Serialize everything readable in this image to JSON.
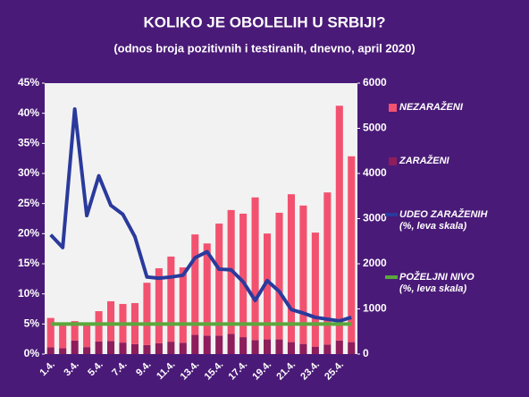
{
  "chart_data": {
    "type": "bar",
    "title": "KOLIKO JE OBOLELIH U SRBIJI?",
    "subtitle": "(odnos broja pozitivnih i testiranih, dnevno, april 2020)",
    "categories": [
      "1.4.",
      null,
      "3.4.",
      null,
      "5.4.",
      null,
      "7.4.",
      null,
      "9.4.",
      null,
      "11.4.",
      null,
      "13.4.",
      null,
      "15.4.",
      null,
      "17.4.",
      null,
      "19.4.",
      null,
      "21.4.",
      null,
      "23.4.",
      null,
      "25.4.",
      null
    ],
    "series": [
      {
        "name": "NEZARAŽENI",
        "type": "bar",
        "axis": "y2",
        "color": "#f2526f",
        "values": [
          650,
          520,
          430,
          515,
          670,
          880,
          855,
          910,
          1380,
          1660,
          1885,
          1670,
          2225,
          2040,
          2480,
          2745,
          2735,
          3160,
          2345,
          2805,
          3275,
          3065,
          2525,
          3370,
          5200,
          4115
        ]
      },
      {
        "name": "ZARAŽENI",
        "type": "bar",
        "axis": "y2",
        "color": "#8e1d5c",
        "values": [
          150,
          130,
          300,
          155,
          280,
          290,
          255,
          220,
          200,
          240,
          275,
          250,
          425,
          410,
          410,
          445,
          375,
          310,
          325,
          325,
          265,
          225,
          165,
          210,
          300,
          265
        ]
      },
      {
        "name": "UDEO ZARAŽENIH",
        "legend_note": "(%, leva skala)",
        "type": "line",
        "color": "#2a3a9c",
        "values": [
          19.8,
          17.7,
          40.7,
          23,
          29.6,
          24.7,
          23.2,
          19.5,
          12.8,
          12.6,
          12.8,
          13.1,
          16,
          17,
          14.1,
          14,
          12,
          8.9,
          12.2,
          10.4,
          7.4,
          6.8,
          6.1,
          5.8,
          5.5,
          6.1
        ]
      },
      {
        "name": "POŽELJNI NIVO",
        "legend_note": "(%, leva skala)",
        "type": "line",
        "color": "#5aa83c",
        "values": [
          5,
          5,
          5,
          5,
          5,
          5,
          5,
          5,
          5,
          5,
          5,
          5,
          5,
          5,
          5,
          5,
          5,
          5,
          5,
          5,
          5,
          5,
          5,
          5,
          5,
          5
        ]
      }
    ],
    "ylim": [
      0,
      45
    ],
    "yticks": [
      {
        "value": 0,
        "label": "0%"
      },
      {
        "value": 5,
        "label": "5%"
      },
      {
        "value": 10,
        "label": "10%"
      },
      {
        "value": 15,
        "label": "15%"
      },
      {
        "value": 20,
        "label": "20%"
      },
      {
        "value": 25,
        "label": "25%"
      },
      {
        "value": 30,
        "label": "30%"
      },
      {
        "value": 35,
        "label": "35%"
      },
      {
        "value": 40,
        "label": "40%"
      },
      {
        "value": 45,
        "label": "45%"
      }
    ],
    "y2lim": [
      0,
      6000
    ],
    "y2ticks": [
      0,
      1000,
      2000,
      3000,
      4000,
      5000,
      6000
    ],
    "stacked": true,
    "legend": "right"
  }
}
